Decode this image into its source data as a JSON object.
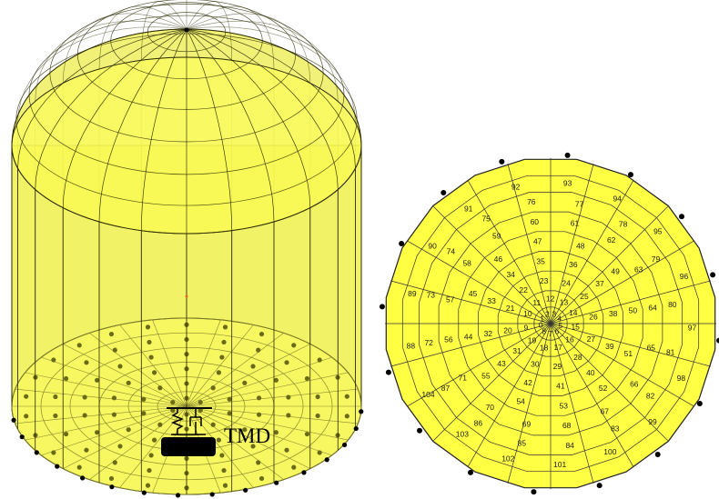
{
  "left_figure": {
    "label": "TMD"
  },
  "right_figure": {
    "rings": [
      [
        "0",
        "1",
        "2",
        "3",
        "4",
        "5",
        "6",
        "7",
        "8"
      ],
      [
        "9",
        "10",
        "11",
        "12",
        "13",
        "14",
        "15",
        "16",
        "17",
        "18",
        "19"
      ],
      [
        "20",
        "21",
        "22",
        "23",
        "24",
        "25",
        "26",
        "27",
        "28",
        "29",
        "30",
        "31"
      ],
      [
        "32",
        "33",
        "34",
        "35",
        "36",
        "37",
        "38",
        "39",
        "40",
        "41",
        "42",
        "43"
      ],
      [
        "44",
        "45",
        "46",
        "47",
        "48",
        "49",
        "50",
        "51",
        "52",
        "53",
        "54",
        "55"
      ],
      [
        "56",
        "57",
        "58",
        "59",
        "60",
        "61",
        "62",
        "63",
        "64",
        "65",
        "66",
        "67",
        "68",
        "69",
        "70",
        "71"
      ],
      [
        "72",
        "73",
        "74",
        "75",
        "76",
        "77",
        "78",
        "79",
        "80",
        "81",
        "82",
        "83",
        "84",
        "85",
        "86",
        "87"
      ],
      [
        "88",
        "89",
        "90",
        "91",
        "92",
        "93",
        "94",
        "95",
        "96",
        "97",
        "98",
        "99",
        "100",
        "101",
        "102",
        "103",
        "104"
      ]
    ]
  }
}
